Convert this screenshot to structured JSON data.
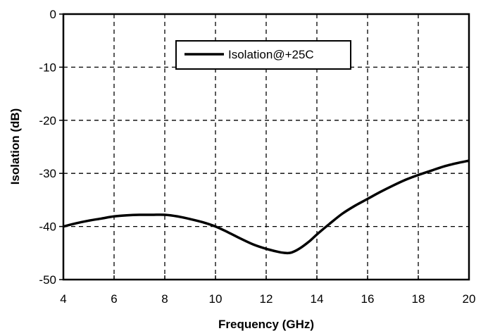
{
  "chart_data": {
    "type": "line",
    "xlabel": "Frequency (GHz)",
    "ylabel": "Isolation (dB)",
    "xlim": [
      4,
      20
    ],
    "ylim": [
      -50,
      0
    ],
    "xticks": [
      4,
      6,
      8,
      10,
      12,
      14,
      16,
      18,
      20
    ],
    "yticks": [
      0,
      -10,
      -20,
      -30,
      -40,
      -50
    ],
    "xtick_labels": [
      "4",
      "6",
      "8",
      "10",
      "12",
      "14",
      "16",
      "18",
      "20"
    ],
    "ytick_labels": [
      "0",
      "-10",
      "-20",
      "-30",
      "-40",
      "-50"
    ],
    "grid": true,
    "legend_position": "top-center",
    "series": [
      {
        "name": "Isolation@+25C",
        "color": "#000000",
        "x": [
          4,
          4.5,
          5,
          5.5,
          6,
          6.5,
          7,
          7.5,
          8,
          8.5,
          9,
          9.5,
          10,
          10.5,
          11,
          11.5,
          12,
          12.5,
          12.8,
          13,
          13.3,
          13.7,
          14,
          14.5,
          15,
          15.5,
          16,
          16.5,
          17,
          17.5,
          18,
          18.5,
          19,
          19.5,
          20
        ],
        "y": [
          -40,
          -39.4,
          -38.9,
          -38.5,
          -38.1,
          -37.9,
          -37.8,
          -37.8,
          -37.8,
          -38.1,
          -38.6,
          -39.2,
          -40,
          -41.1,
          -42.3,
          -43.4,
          -44.2,
          -44.8,
          -45,
          -44.9,
          -44.2,
          -42.8,
          -41.5,
          -39.5,
          -37.6,
          -36.1,
          -34.8,
          -33.5,
          -32.3,
          -31.2,
          -30.3,
          -29.5,
          -28.7,
          -28.1,
          -27.6
        ]
      }
    ]
  }
}
